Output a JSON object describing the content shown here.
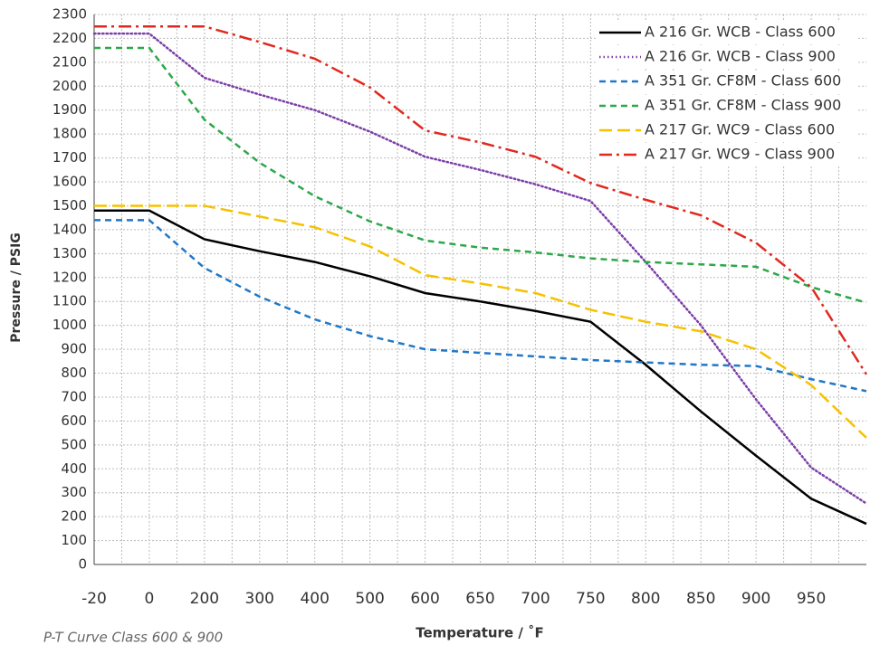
{
  "chart_data": {
    "type": "line",
    "caption": "P-T Curve Class 600 & 900",
    "x_label": "Temperature / ˚F",
    "y_label": "Pressure / PSIG",
    "categories": [
      "-20",
      "0",
      "200",
      "300",
      "400",
      "500",
      "600",
      "650",
      "700",
      "750",
      "800",
      "850",
      "900",
      "950",
      null
    ],
    "series": [
      {
        "name": "A 216 Gr. WCB - Class 600",
        "color": "#000000",
        "style": "solid",
        "values": [
          1480,
          1480,
          1360,
          1310,
          1265,
          1205,
          1135,
          1100,
          1060,
          1015,
          835,
          640,
          455,
          275,
          170
        ]
      },
      {
        "name": "A 216 Gr. WCB - Class 900",
        "color": "#7b3fa8",
        "style": "dotted",
        "values": [
          2220,
          2220,
          2035,
          1965,
          1900,
          1810,
          1705,
          1650,
          1590,
          1520,
          1265,
          1000,
          690,
          405,
          255
        ]
      },
      {
        "name": "A 351 Gr. CF8M - Class 600",
        "color": "#1f78c8",
        "style": "dashed",
        "values": [
          1440,
          1440,
          1240,
          1120,
          1025,
          955,
          900,
          885,
          870,
          855,
          845,
          835,
          830,
          775,
          725
        ]
      },
      {
        "name": "A 351 Gr. CF8M - Class 900",
        "color": "#2ca84a",
        "style": "dashed",
        "values": [
          2160,
          2160,
          1860,
          1680,
          1540,
          1435,
          1355,
          1325,
          1305,
          1280,
          1265,
          1255,
          1245,
          1160,
          1095
        ]
      },
      {
        "name": "A 217 Gr. WC9 - Class 600",
        "color": "#f5c200",
        "style": "longdash",
        "values": [
          1500,
          1500,
          1500,
          1455,
          1410,
          1330,
          1210,
          1175,
          1135,
          1065,
          1015,
          975,
          900,
          750,
          530
        ]
      },
      {
        "name": "A 217 Gr. WC9 - Class 900",
        "color": "#e0281e",
        "style": "dashdot",
        "values": [
          2250,
          2250,
          2250,
          2185,
          2115,
          1995,
          1815,
          1765,
          1705,
          1595,
          1525,
          1460,
          1345,
          1160,
          795
        ]
      }
    ],
    "ylim": [
      0,
      2300
    ],
    "yticks": [
      0,
      100,
      200,
      300,
      400,
      500,
      600,
      700,
      800,
      900,
      1000,
      1100,
      1200,
      1300,
      1400,
      1500,
      1600,
      1700,
      1800,
      1900,
      2000,
      2100,
      2200,
      2300
    ],
    "grid": true,
    "legend": "top-right"
  }
}
